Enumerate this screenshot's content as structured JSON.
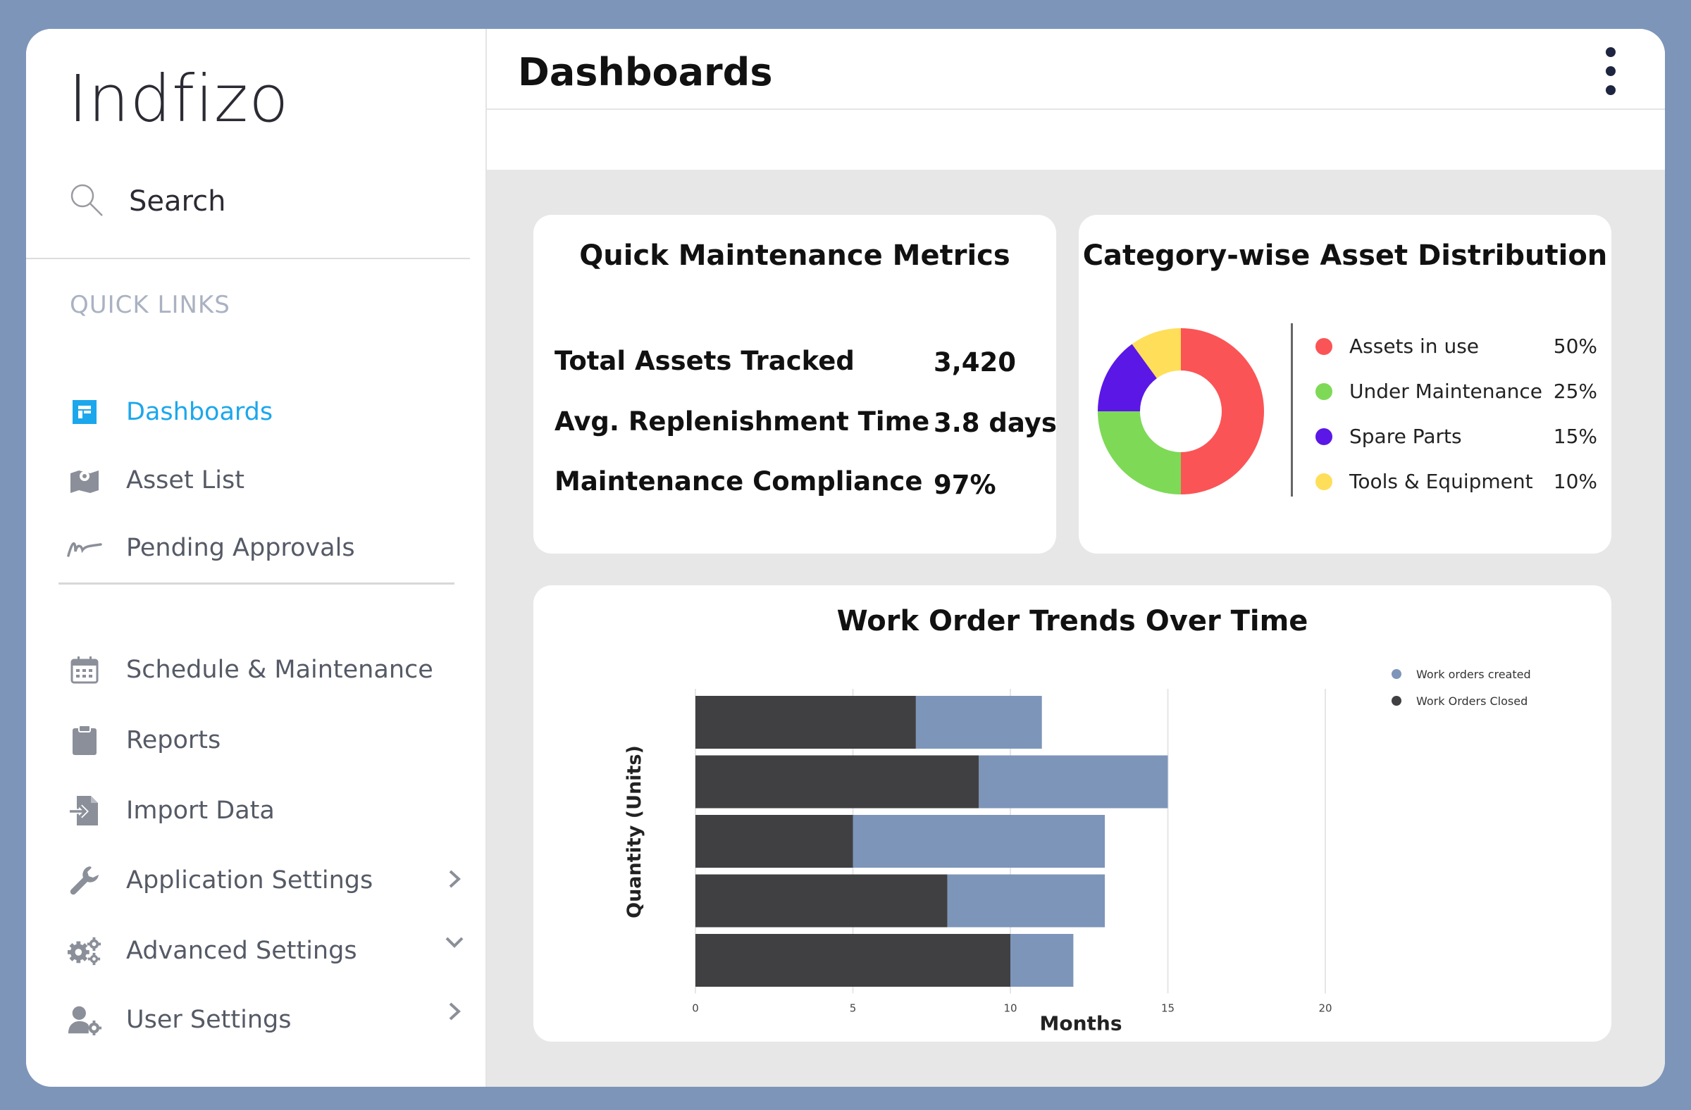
{
  "app": {
    "logo": "Indfizo"
  },
  "search": {
    "label": "Search"
  },
  "sidebar": {
    "section_label": "QUICK LINKS",
    "quick_links": [
      {
        "label": "Dashboards",
        "icon": "dashboard-icon"
      },
      {
        "label": "Asset List",
        "icon": "map-icon"
      },
      {
        "label": "Pending Approvals",
        "icon": "signature-icon"
      }
    ],
    "items": [
      {
        "label": "Schedule & Maintenance",
        "icon": "calendar-icon"
      },
      {
        "label": "Reports",
        "icon": "clipboard-icon"
      },
      {
        "label": "Import Data",
        "icon": "import-icon"
      },
      {
        "label": "Application Settings",
        "icon": "wrench-icon",
        "chevron": "right"
      },
      {
        "label": "Advanced Settings",
        "icon": "gears-icon",
        "chevron": "down"
      },
      {
        "label": "User Settings",
        "icon": "user-gear-icon",
        "chevron": "right"
      }
    ]
  },
  "header": {
    "title": "Dashboards"
  },
  "metrics_card": {
    "title": "Quick Maintenance Metrics",
    "rows": [
      {
        "label": "Total Assets Tracked",
        "value": "3,420"
      },
      {
        "label": "Avg. Replenishment Time",
        "value": "3.8 days"
      },
      {
        "label": "Maintenance Compliance",
        "value": "97%"
      }
    ]
  },
  "distribution_card": {
    "title": "Category-wise Asset Distribution",
    "chart_data": {
      "type": "pie",
      "slices": [
        {
          "label": "Assets in use",
          "value": 50,
          "display": "50%",
          "color": "#fb5456"
        },
        {
          "label": "Under Maintenance",
          "value": 25,
          "display": "25%",
          "color": "#7ed957"
        },
        {
          "label": "Spare Parts",
          "value": 15,
          "display": "15%",
          "color": "#5b17e6"
        },
        {
          "label": "Tools & Equipment",
          "value": 10,
          "display": "10%",
          "color": "#ffde59"
        }
      ]
    }
  },
  "trend_card": {
    "title": "Work Order Trends Over Time",
    "chart_data": {
      "type": "bar",
      "orientation": "horizontal",
      "stacked": true,
      "xlabel": "Months",
      "ylabel": "Quantity (Units)",
      "xlim": [
        0,
        20
      ],
      "xticks": [
        "0",
        "5",
        "10",
        "15",
        "20"
      ],
      "grid": true,
      "legend": "top-right",
      "series": [
        {
          "name": "Work Orders Closed",
          "color": "#404042",
          "values": [
            7,
            9,
            5,
            8,
            10
          ]
        },
        {
          "name": "Work orders created",
          "color": "#7d95b9",
          "values": [
            4,
            6,
            8,
            5,
            2
          ]
        }
      ]
    }
  }
}
